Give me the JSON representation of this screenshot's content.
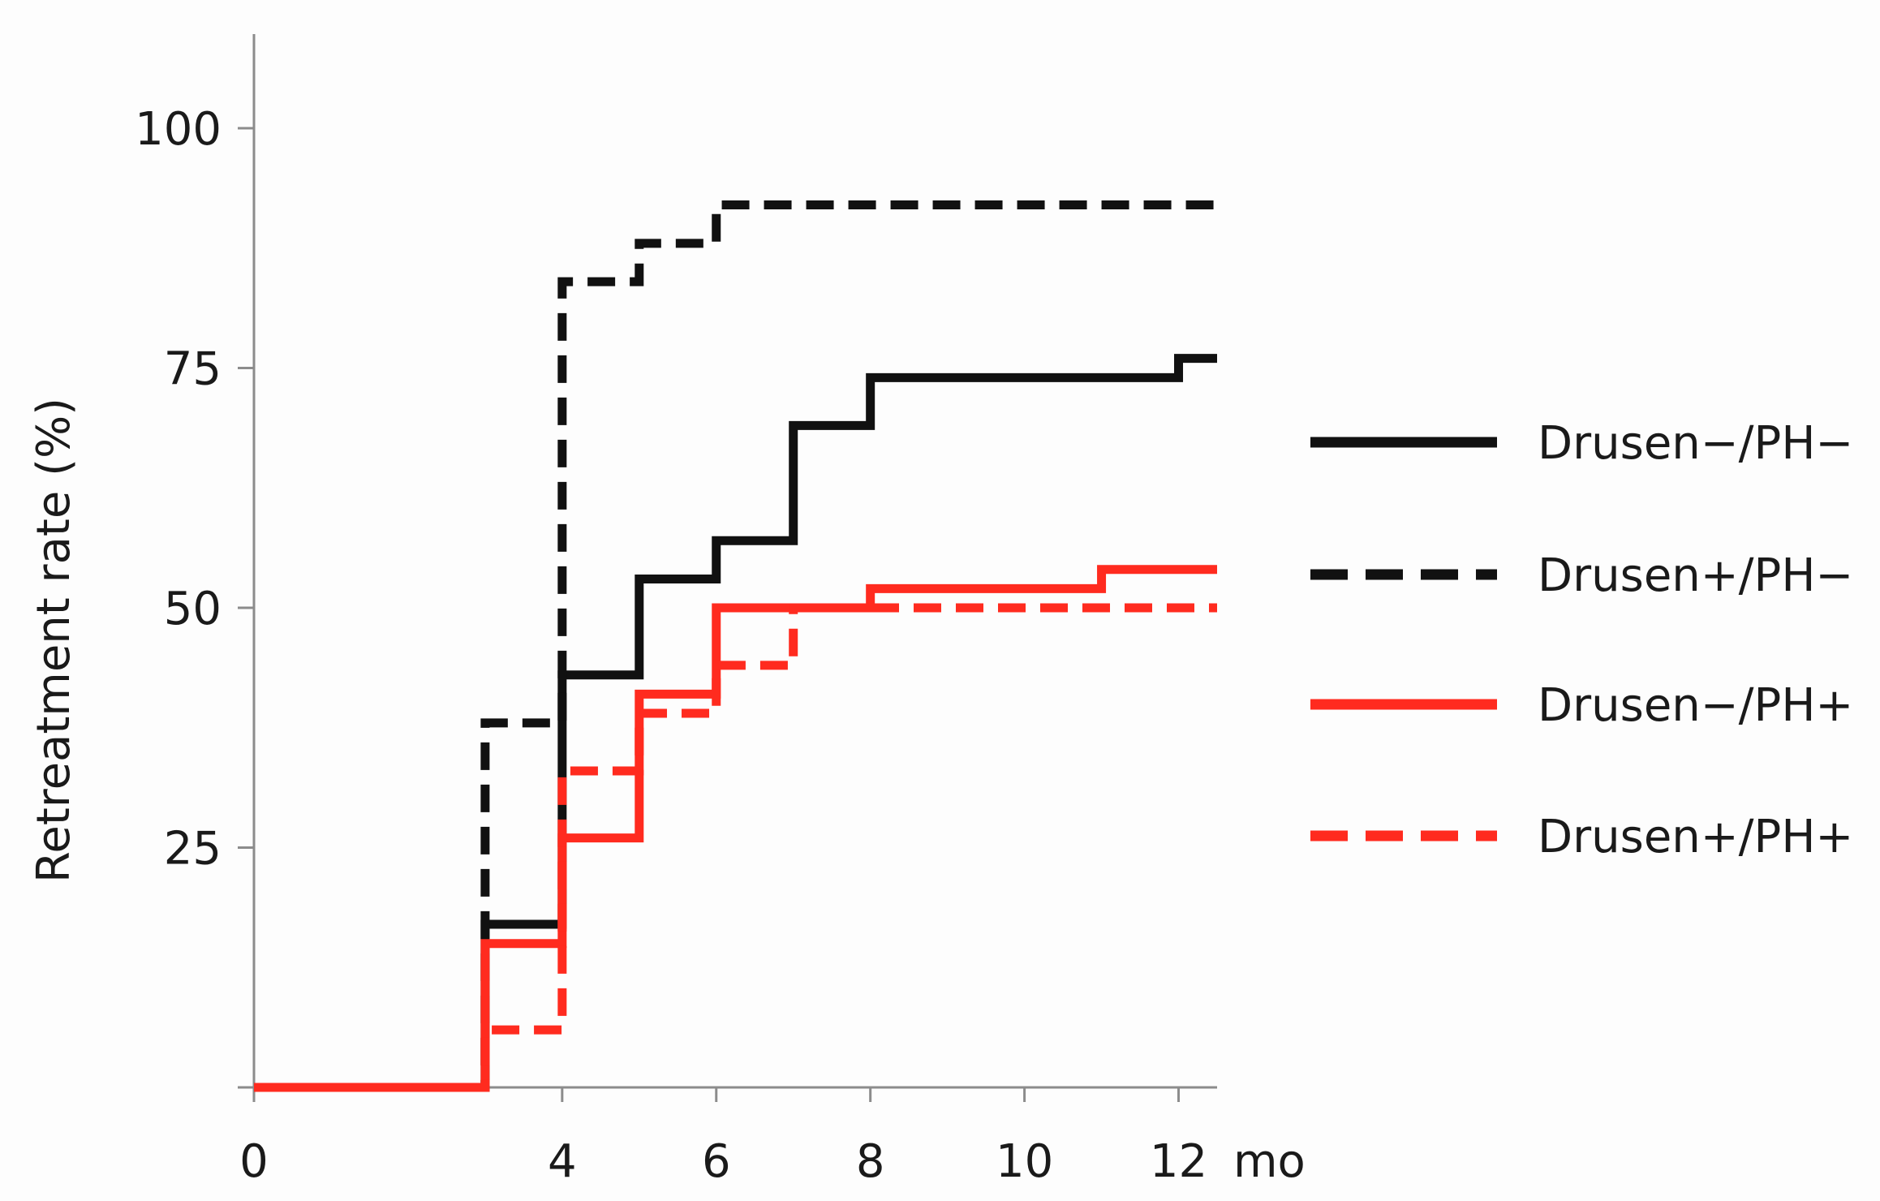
{
  "chart_data": {
    "type": "line",
    "title": "",
    "xlabel": "",
    "x_unit_label": "mo",
    "ylabel": "Retreatment rate (%)",
    "xlim": [
      0,
      12.5
    ],
    "ylim": [
      0,
      110
    ],
    "x_ticks": [
      "0",
      "4",
      "6",
      "8",
      "10",
      "12"
    ],
    "x_tick_values": [
      0,
      4,
      6,
      8,
      10,
      12
    ],
    "y_ticks": [
      "25",
      "50",
      "75",
      "100"
    ],
    "y_tick_values": [
      25,
      50,
      75,
      100
    ],
    "grid": false,
    "legend_position": "right",
    "series": [
      {
        "name": "Drusen−/PH−",
        "color": "#111111",
        "dash": "solid",
        "steps": [
          [
            0,
            0
          ],
          [
            3,
            17
          ],
          [
            4,
            43
          ],
          [
            5,
            53
          ],
          [
            6,
            57
          ],
          [
            7,
            69
          ],
          [
            8,
            74
          ],
          [
            12,
            76
          ],
          [
            12.5,
            76
          ]
        ]
      },
      {
        "name": "Drusen+/PH−",
        "color": "#111111",
        "dash": "dashed",
        "steps": [
          [
            0,
            0
          ],
          [
            3,
            38
          ],
          [
            4,
            84
          ],
          [
            5,
            88
          ],
          [
            6,
            92
          ],
          [
            12.5,
            92
          ]
        ]
      },
      {
        "name": "Drusen−/PH+",
        "color": "#ff2b1f",
        "dash": "solid",
        "steps": [
          [
            0,
            0
          ],
          [
            3,
            15
          ],
          [
            4,
            26
          ],
          [
            5,
            41
          ],
          [
            6,
            50
          ],
          [
            8,
            52
          ],
          [
            11,
            54
          ],
          [
            12.5,
            54
          ]
        ]
      },
      {
        "name": "Drusen+/PH+",
        "color": "#ff2b1f",
        "dash": "dashed",
        "steps": [
          [
            0,
            0
          ],
          [
            3,
            6
          ],
          [
            4,
            33
          ],
          [
            5,
            39
          ],
          [
            6,
            44
          ],
          [
            7,
            50
          ],
          [
            12.5,
            50
          ]
        ]
      }
    ]
  }
}
